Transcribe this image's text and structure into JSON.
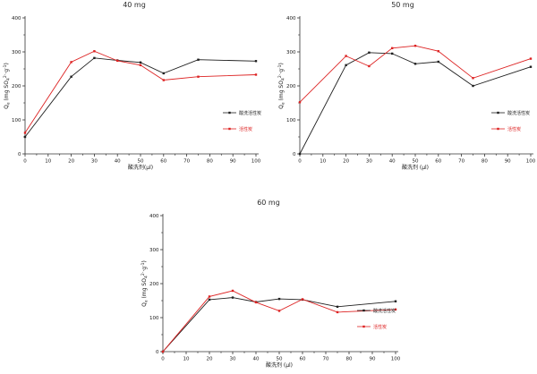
{
  "figure": {
    "background": "#ffffff",
    "axis_color": "#333333",
    "tick_label_color": "#1a1a1a"
  },
  "chart_data": [
    {
      "type": "line",
      "title": "40 mg",
      "xlabel": "酸洗剂(μl)",
      "ylabel": "Qe (mg SO42-·g-1)",
      "ylabel_parts": [
        {
          "t": "Q"
        },
        {
          "t": "e",
          "pos": "sub"
        },
        {
          "t": " (mg SO"
        },
        {
          "t": "4",
          "pos": "sub"
        },
        {
          "t": "2-",
          "pos": "sup"
        },
        {
          "t": "·g"
        },
        {
          "t": "-1",
          "pos": "sup"
        },
        {
          "t": ")"
        }
      ],
      "xlim": [
        0,
        100
      ],
      "ylim": [
        0,
        400
      ],
      "xticks": [
        0,
        10,
        20,
        30,
        40,
        50,
        60,
        70,
        80,
        90,
        100
      ],
      "yticks": [
        0,
        100,
        200,
        300,
        400
      ],
      "minor_tick_step": {
        "x": 5,
        "y": 50
      },
      "grid": false,
      "legend_position": "right-middle",
      "series": [
        {
          "name": "酸洗活性炭",
          "color": "#1f1f1f",
          "marker": "square",
          "x": [
            0,
            20,
            30,
            40,
            50,
            60,
            75,
            100
          ],
          "y": [
            50,
            227,
            282,
            275,
            269,
            237,
            277,
            273
          ]
        },
        {
          "name": "活性炭",
          "color": "#dd2222",
          "marker": "square",
          "x": [
            0,
            20,
            30,
            40,
            50,
            60,
            75,
            100
          ],
          "y": [
            62,
            270,
            302,
            274,
            261,
            217,
            227,
            233
          ]
        }
      ]
    },
    {
      "type": "line",
      "title": "50 mg",
      "xlabel": "酸洗剂 (μl)",
      "ylabel": "Qe (mg SO42-·g-1)",
      "ylabel_parts": [
        {
          "t": "Q"
        },
        {
          "t": "e",
          "pos": "sub"
        },
        {
          "t": " (mg SO"
        },
        {
          "t": "4",
          "pos": "sub"
        },
        {
          "t": "2-",
          "pos": "sup"
        },
        {
          "t": "·g"
        },
        {
          "t": "-1",
          "pos": "sup"
        },
        {
          "t": ")"
        }
      ],
      "xlim": [
        0,
        100
      ],
      "ylim": [
        0,
        400
      ],
      "xticks": [
        0,
        10,
        20,
        30,
        40,
        50,
        60,
        70,
        80,
        90,
        100
      ],
      "yticks": [
        0,
        100,
        200,
        300,
        400
      ],
      "minor_tick_step": {
        "x": 5,
        "y": 50
      },
      "grid": false,
      "legend_position": "right-middle",
      "series": [
        {
          "name": "酸洗活性炭",
          "color": "#1f1f1f",
          "marker": "square",
          "x": [
            0,
            20,
            30,
            40,
            50,
            60,
            75,
            100
          ],
          "y": [
            0,
            261,
            298,
            295,
            265,
            271,
            200,
            256
          ]
        },
        {
          "name": "活性炭",
          "color": "#dd2222",
          "marker": "square",
          "x": [
            0,
            20,
            30,
            40,
            50,
            60,
            75,
            100
          ],
          "y": [
            152,
            288,
            258,
            311,
            318,
            302,
            223,
            280
          ]
        }
      ]
    },
    {
      "type": "line",
      "title": "60 mg",
      "xlabel": "酸洗剂 (μl)",
      "ylabel": "Qe (mg SO42-·g-1)",
      "ylabel_parts": [
        {
          "t": "Q"
        },
        {
          "t": "e",
          "pos": "sub"
        },
        {
          "t": " (mg SO"
        },
        {
          "t": "4",
          "pos": "sub"
        },
        {
          "t": "2-",
          "pos": "sup"
        },
        {
          "t": "·g"
        },
        {
          "t": "-1",
          "pos": "sup"
        },
        {
          "t": ")"
        }
      ],
      "xlim": [
        0,
        100
      ],
      "ylim": [
        0,
        400
      ],
      "xticks": [
        0,
        10,
        20,
        30,
        40,
        50,
        60,
        70,
        80,
        90,
        100
      ],
      "yticks": [
        0,
        100,
        200,
        300,
        400
      ],
      "minor_tick_step": {
        "x": 5,
        "y": 50
      },
      "grid": false,
      "legend_position": "right-middle",
      "series": [
        {
          "name": "酸洗活性炭",
          "color": "#1f1f1f",
          "marker": "square",
          "x": [
            0,
            20,
            30,
            40,
            50,
            60,
            75,
            100
          ],
          "y": [
            0,
            153,
            159,
            146,
            155,
            153,
            132,
            148
          ]
        },
        {
          "name": "活性炭",
          "color": "#dd2222",
          "marker": "square",
          "x": [
            0,
            20,
            30,
            40,
            50,
            60,
            75,
            100
          ],
          "y": [
            0,
            162,
            179,
            145,
            120,
            154,
            116,
            124
          ]
        }
      ]
    }
  ]
}
